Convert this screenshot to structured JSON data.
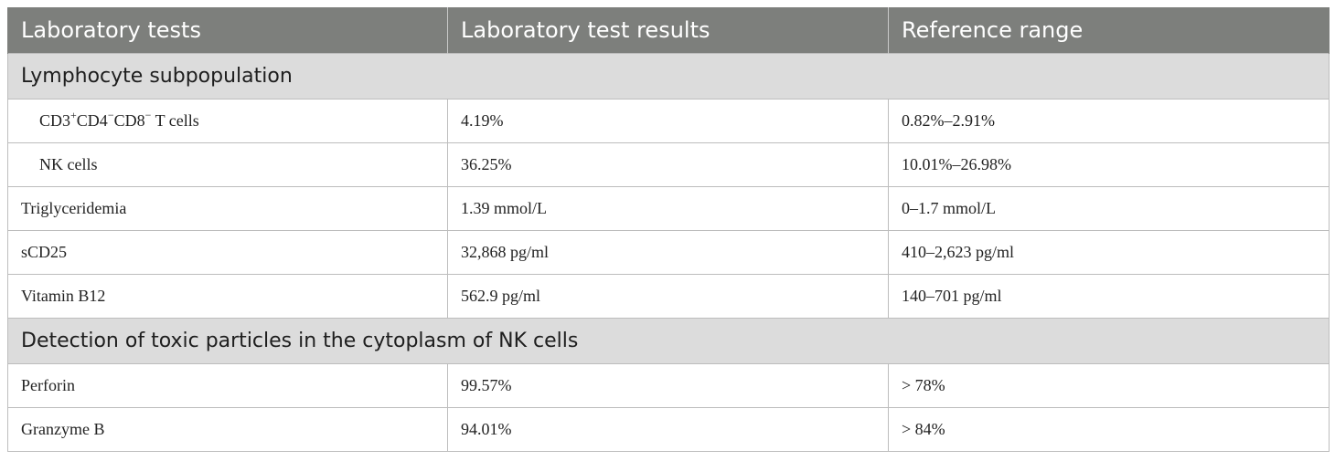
{
  "table": {
    "headers": [
      "Laboratory tests",
      "Laboratory test results",
      "Reference range"
    ],
    "section_1": "Lymphocyte subpopulation",
    "rows_1": [
      {
        "test_base": "CD3",
        "sup_1": "+",
        "mid_1": "CD4",
        "sup_2": "−",
        "mid_2": "CD8",
        "sup_3": "−",
        "tail": " T cells",
        "result": "4.19%",
        "range": "0.82%–2.91%"
      },
      {
        "test": "NK cells",
        "result": "36.25%",
        "range": "10.01%–26.98%"
      }
    ],
    "rows_2": [
      {
        "test": "Triglyceridemia",
        "result": "1.39 mmol/L",
        "range": "0–1.7 mmol/L"
      },
      {
        "test": "sCD25",
        "result": "32,868 pg/ml",
        "range": "410–2,623 pg/ml"
      },
      {
        "test": "Vitamin B12",
        "result": "562.9 pg/ml",
        "range": "140–701 pg/ml"
      }
    ],
    "section_2": "Detection of toxic particles in the cytoplasm of NK cells",
    "rows_3": [
      {
        "test": "Perforin",
        "result": "99.57%",
        "range": "> 78%"
      },
      {
        "test": "Granzyme B",
        "result": "94.01%",
        "range": "> 84%"
      }
    ]
  }
}
